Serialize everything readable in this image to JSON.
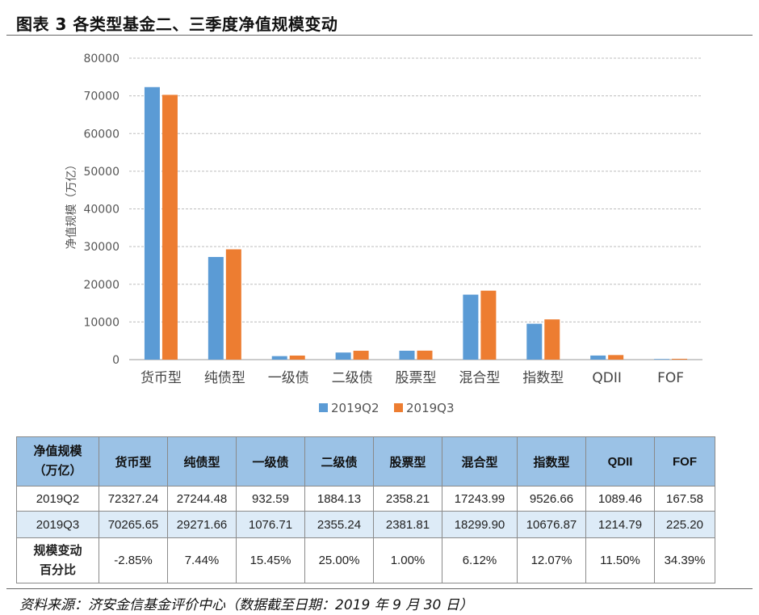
{
  "figure": {
    "title": "图表 3  各类型基金二、三季度净值规模变动",
    "source": "资料来源：济安金信基金评价中心（数据截至日期：2019 年 9 月 30 日）"
  },
  "chart_data": {
    "type": "bar",
    "title": "",
    "xlabel": "",
    "ylabel": "净值规模（万亿）",
    "ylim": [
      0,
      80000
    ],
    "yticks": [
      "0",
      "10000",
      "20000",
      "30000",
      "40000",
      "50000",
      "60000",
      "70000",
      "80000"
    ],
    "grid": true,
    "legend_position": "bottom",
    "categories": [
      "货币型",
      "纯债型",
      "一级债",
      "二级债",
      "股票型",
      "混合型",
      "指数型",
      "QDII",
      "FOF"
    ],
    "series": [
      {
        "name": "2019Q2",
        "color": "#5b9bd5",
        "values": [
          72327.24,
          27244.48,
          932.59,
          1884.13,
          2358.21,
          17243.99,
          9526.66,
          1089.46,
          167.58
        ]
      },
      {
        "name": "2019Q3",
        "color": "#ed7d31",
        "values": [
          70265.65,
          29271.66,
          1076.71,
          2355.24,
          2381.81,
          18299.9,
          10676.87,
          1214.79,
          225.2
        ]
      }
    ]
  },
  "table": {
    "corner_line1": "净值规模",
    "corner_line2": "（万亿）",
    "headers": [
      "货币型",
      "纯债型",
      "一级债",
      "二级债",
      "股票型",
      "混合型",
      "指数型",
      "QDII",
      "FOF"
    ],
    "rows": [
      {
        "label": "2019Q2",
        "cells": [
          "72327.24",
          "27244.48",
          "932.59",
          "1884.13",
          "2358.21",
          "17243.99",
          "9526.66",
          "1089.46",
          "167.58"
        ]
      },
      {
        "label": "2019Q3",
        "cells": [
          "70265.65",
          "29271.66",
          "1076.71",
          "2355.24",
          "2381.81",
          "18299.90",
          "10676.87",
          "1214.79",
          "225.20"
        ]
      }
    ],
    "change_label_line1": "规模变动",
    "change_label_line2": "百分比",
    "change": [
      "-2.85%",
      "7.44%",
      "15.45%",
      "25.00%",
      "1.00%",
      "6.12%",
      "12.07%",
      "11.50%",
      "34.39%"
    ],
    "header_color": "#9bc2e6",
    "alt_row_color": "#ddebf7"
  }
}
